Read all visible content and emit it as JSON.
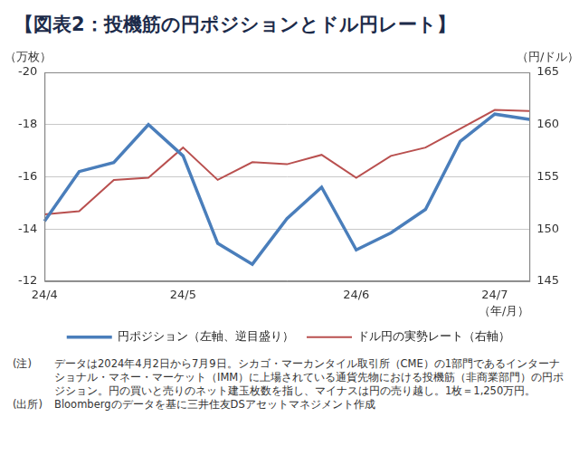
{
  "chart_data": {
    "type": "line",
    "title": "【図表2：投機筋の円ポジションとドル円レート】",
    "y_label": "（万枚）",
    "y2_label": "（円/ドル）",
    "x_label": "（年/月）",
    "categories": [
      "24/4",
      null,
      null,
      null,
      "24/5",
      null,
      null,
      null,
      null,
      "24/6",
      null,
      null,
      null,
      "24/7",
      null
    ],
    "series": [
      {
        "name": "円ポジション（左軸、逆目盛り）",
        "color": "#4a7ebb",
        "axis": "y",
        "values": [
          -14.3,
          -16.2,
          -16.55,
          -18.0,
          -16.8,
          -13.45,
          -12.65,
          -14.4,
          -15.6,
          -13.2,
          -13.85,
          -14.75,
          -17.35,
          -18.4,
          -18.2
        ]
      },
      {
        "name": "ドル円の実勢レート（右軸）",
        "color": "#b9504f",
        "axis": "y2",
        "values": [
          151.4,
          151.7,
          154.7,
          154.9,
          157.8,
          154.7,
          156.4,
          156.2,
          157.1,
          154.9,
          157.0,
          157.8,
          159.6,
          161.4,
          161.3
        ]
      }
    ],
    "ylim": [
      -12,
      -20
    ],
    "yticks": [
      -20,
      -18,
      -16,
      -14,
      -12
    ],
    "y2lim": [
      145,
      165
    ],
    "y2ticks": [
      145,
      150,
      155,
      160,
      165
    ],
    "grid": true,
    "legend": "bottom",
    "notes": [
      {
        "label": "(注)",
        "text": "データは2024年4月2日から7月9日。シカゴ・マーカンタイル取引所（CME）の1部門であるインターナショナル・マネー・マーケット（IMM）に上場されている通貨先物における投機筋（非商業部門）の円ポジション。円の買いと売りのネット建玉枚数を指し、マイナスは円の売り越し。1枚＝1,250万円。"
      },
      {
        "label": "(出所)",
        "text": "Bloombergのデータを基に三井住友DSアセットマネジメント作成"
      }
    ]
  }
}
